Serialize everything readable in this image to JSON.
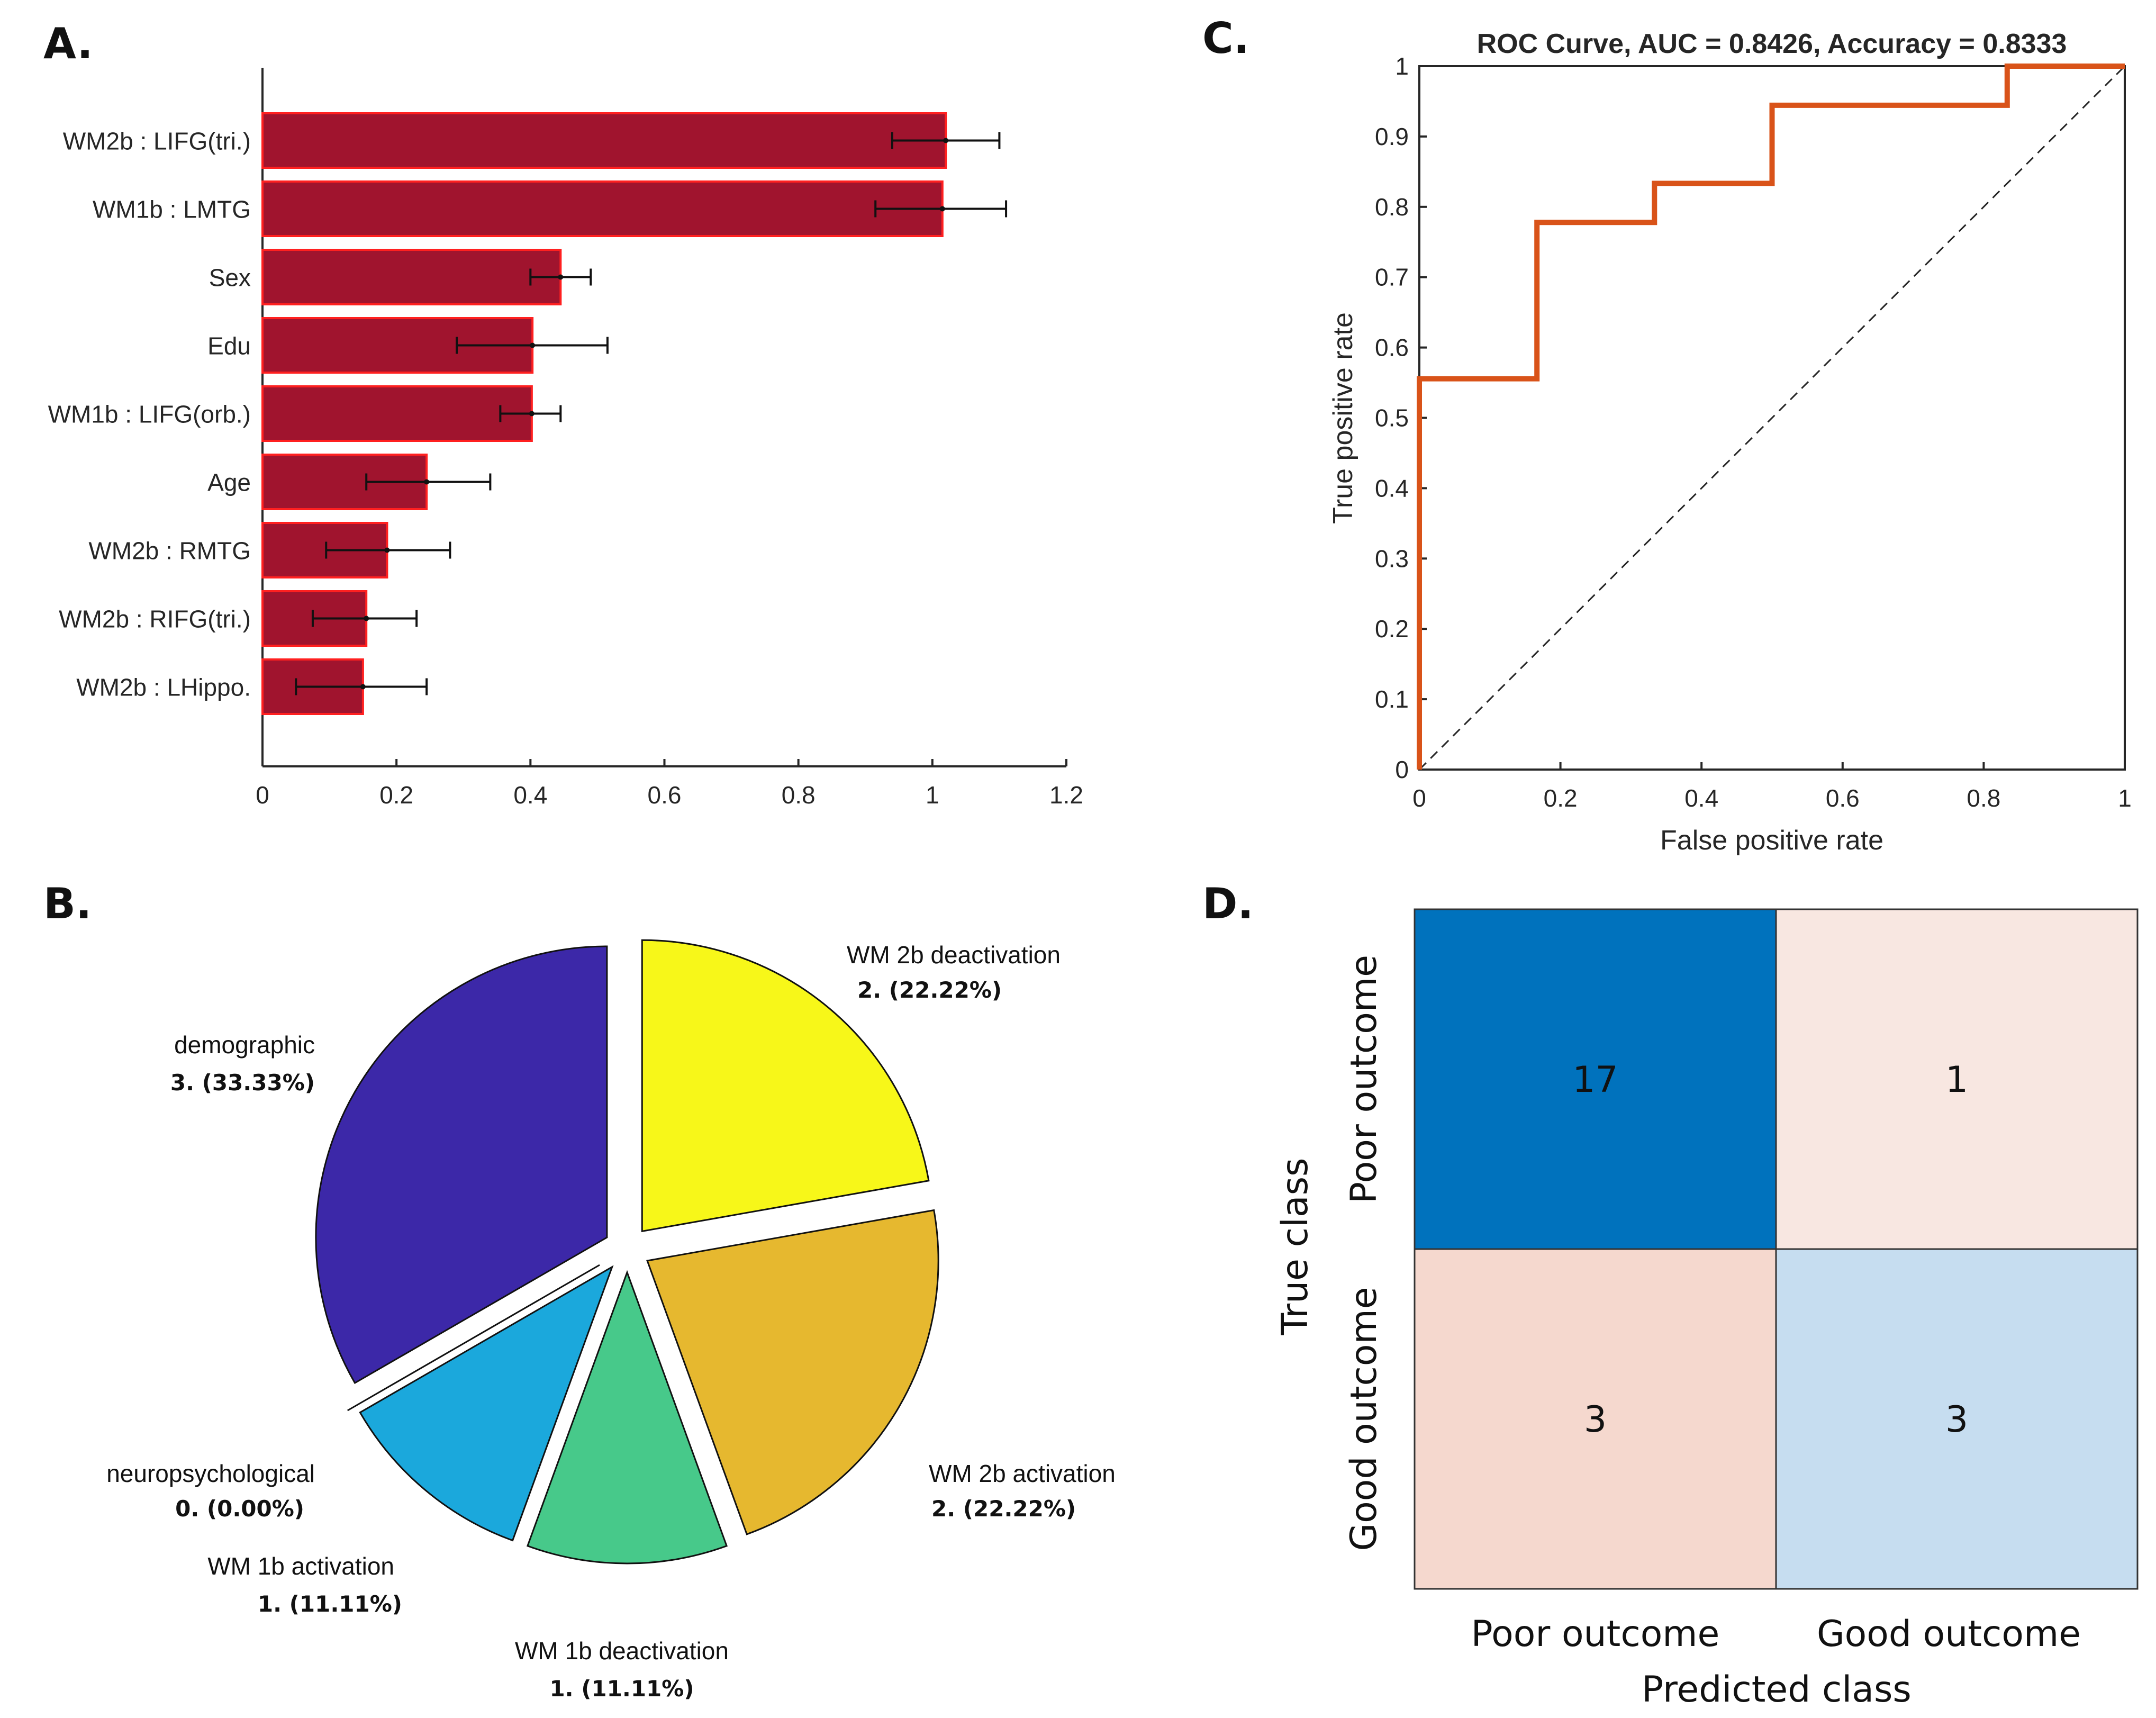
{
  "chart_data": [
    {
      "panel": "A.",
      "type": "bar",
      "orientation": "horizontal",
      "categories": [
        "WM2b : LIFG(tri.)",
        "WM1b : LMTG",
        "Sex",
        "Edu",
        "WM1b : LIFG(orb.)",
        "Age",
        "WM2b : RMTG",
        "WM2b : RIFG(tri.)",
        "WM2b : LHippo."
      ],
      "values": [
        1.02,
        1.015,
        0.445,
        0.403,
        0.402,
        0.245,
        0.186,
        0.155,
        0.15
      ],
      "error_low": [
        0.94,
        0.915,
        0.4,
        0.29,
        0.355,
        0.155,
        0.095,
        0.075,
        0.05
      ],
      "error_high": [
        1.1,
        1.11,
        0.49,
        0.515,
        0.445,
        0.34,
        0.28,
        0.23,
        0.245
      ],
      "xlim": [
        0,
        1.2
      ],
      "xticks": [
        "0",
        "0.2",
        "0.4",
        "0.6",
        "0.8",
        "1",
        "1.2"
      ],
      "bar_color": "#A0142E",
      "bar_edge": "#FF2020"
    },
    {
      "panel": "B.",
      "type": "pie",
      "slices": [
        {
          "name": "WM 2b deactivation",
          "count_label": "2. (22.22%)",
          "value": 2,
          "color": "#F7F719"
        },
        {
          "name": "WM 2b activation",
          "count_label": "2. (22.22%)",
          "value": 2,
          "color": "#E6B82F"
        },
        {
          "name": "WM 1b deactivation",
          "count_label": "1. (11.11%)",
          "value": 1,
          "color": "#47C98A"
        },
        {
          "name": "WM 1b activation",
          "count_label": "1. (11.11%)",
          "value": 1,
          "color": "#1BA8DC"
        },
        {
          "name": "neuropsychological",
          "count_label": "0. (0.00%)",
          "value": 0,
          "color": "#3A3AB0"
        },
        {
          "name": "demographic",
          "count_label": "3. (33.33%)",
          "value": 3,
          "color": "#3C28A8"
        }
      ]
    },
    {
      "panel": "C.",
      "type": "line",
      "title": "ROC Curve, AUC = 0.8426, Accuracy = 0.8333",
      "xlabel": "False positive rate",
      "ylabel": "True positive rate",
      "x": [
        0,
        0,
        0.1667,
        0.1667,
        0.3333,
        0.3333,
        0.5,
        0.5,
        0.8333,
        0.8333,
        1
      ],
      "y": [
        0,
        0.5556,
        0.5556,
        0.7778,
        0.7778,
        0.8333,
        0.8333,
        0.9444,
        0.9444,
        1,
        1
      ],
      "xlim": [
        0,
        1
      ],
      "ylim": [
        0,
        1
      ],
      "xticks": [
        "0",
        "0.2",
        "0.4",
        "0.6",
        "0.8",
        "1"
      ],
      "yticks": [
        "0",
        "0.1",
        "0.2",
        "0.3",
        "0.4",
        "0.5",
        "0.6",
        "0.7",
        "0.8",
        "0.9",
        "1"
      ],
      "line_color": "#D95319",
      "diagonal": "dashed"
    },
    {
      "panel": "D.",
      "type": "heatmap",
      "row_labels": [
        "Poor outcome",
        "Good outcome"
      ],
      "col_labels": [
        "Poor outcome",
        "Good outcome"
      ],
      "values": [
        [
          17,
          1
        ],
        [
          3,
          3
        ]
      ],
      "xlabel": "Predicted class",
      "ylabel": "True class",
      "cell_colors": [
        [
          "#0072BD",
          "#F8E7E1"
        ],
        [
          "#F5D8CE",
          "#C6DDF0"
        ]
      ]
    }
  ]
}
